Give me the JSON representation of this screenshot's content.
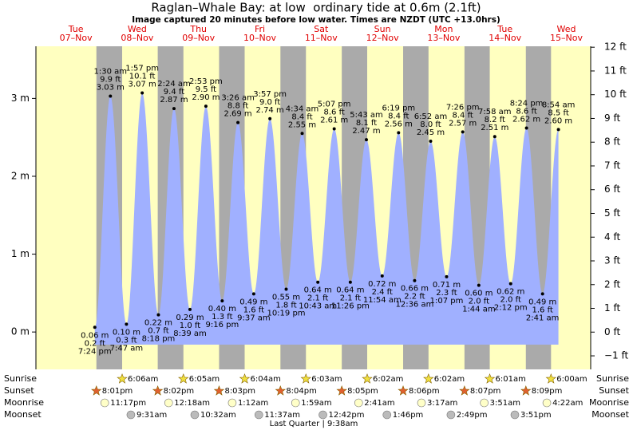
{
  "chart_data": {
    "type": "tide",
    "title": "Raglan–Whale Bay: at low  ordinary tide at 0.6m (2.1ft)",
    "subtitle": "Image captured 20 minutes before low water. Times are NZDT (UTC +13.0hrs)",
    "ylim": [
      -0.48,
      3.67
    ],
    "yticks": [
      {
        "value": 0,
        "label": "0 m"
      },
      {
        "value": 1,
        "label": "1 m"
      },
      {
        "value": 2,
        "label": "2 m"
      },
      {
        "value": 3,
        "label": "3 m"
      }
    ],
    "y2lim": [
      -1.57,
      12.04
    ],
    "y2ticks": [
      {
        "value": -1,
        "label": "−1 ft"
      },
      {
        "value": 0,
        "label": "0 ft"
      },
      {
        "value": 1,
        "label": "1 ft"
      },
      {
        "value": 2,
        "label": "2 ft"
      },
      {
        "value": 3,
        "label": "3 ft"
      },
      {
        "value": 4,
        "label": "4 ft"
      },
      {
        "value": 5,
        "label": "5 ft"
      },
      {
        "value": 6,
        "label": "6 ft"
      },
      {
        "value": 7,
        "label": "7 ft"
      },
      {
        "value": 8,
        "label": "8 ft"
      },
      {
        "value": 9,
        "label": "9 ft"
      },
      {
        "value": 10,
        "label": "10 ft"
      },
      {
        "value": 11,
        "label": "11 ft"
      },
      {
        "value": 12,
        "label": "12 ft"
      }
    ],
    "row_labels": [
      "Sunrise",
      "Sunset",
      "Moonrise",
      "Moonset"
    ],
    "moon_phase": "Last Quarter | 9:38am",
    "days": [
      {
        "name": "Tue",
        "date": "07–Nov",
        "sunrise": null,
        "sunset": "8:01pm",
        "moonrise": "11:17pm",
        "moonset": null,
        "tides": [
          {
            "time": "7:24 pm",
            "value": 0.06,
            "value_label": "0.06 m",
            "feet_label": "0.2 ft"
          }
        ]
      },
      {
        "name": "Wed",
        "date": "08–Nov",
        "sunrise": "6:06am",
        "sunset": "8:02pm",
        "moonrise": null,
        "moonset": "9:31am",
        "tides": [
          {
            "time": "1:30 am",
            "value": 3.03,
            "value_label": "3.03 m",
            "feet_label": "9.9 ft"
          },
          {
            "time": "7:47 am",
            "value": 0.1,
            "value_label": "0.10 m",
            "feet_label": "0.3 ft"
          },
          {
            "time": "1:57 pm",
            "value": 3.07,
            "value_label": "3.07 m",
            "feet_label": "10.1 ft"
          },
          {
            "time": "8:18 pm",
            "value": 0.22,
            "value_label": "0.22 m",
            "feet_label": "0.7 ft"
          }
        ]
      },
      {
        "name": "Thu",
        "date": "09–Nov",
        "sunrise": "6:05am",
        "sunset": "8:03pm",
        "moonrise": "12:18am",
        "moonset": "10:32am",
        "tides": [
          {
            "time": "2:24 am",
            "value": 2.87,
            "value_label": "2.87 m",
            "feet_label": "9.4 ft"
          },
          {
            "time": "8:39 am",
            "value": 0.29,
            "value_label": "0.29 m",
            "feet_label": "1.0 ft"
          },
          {
            "time": "2:53 pm",
            "value": 2.9,
            "value_label": "2.90 m",
            "feet_label": "9.5 ft"
          },
          {
            "time": "9:16 pm",
            "value": 0.4,
            "value_label": "0.40 m",
            "feet_label": "1.3 ft"
          }
        ]
      },
      {
        "name": "Fri",
        "date": "10–Nov",
        "sunrise": "6:04am",
        "sunset": "8:04pm",
        "moonrise": "1:12am",
        "moonset": "11:37am",
        "tides": [
          {
            "time": "3:26 am",
            "value": 2.69,
            "value_label": "2.69 m",
            "feet_label": "8.8 ft"
          },
          {
            "time": "9:37 am",
            "value": 0.49,
            "value_label": "0.49 m",
            "feet_label": "1.6 ft"
          },
          {
            "time": "3:57 pm",
            "value": 2.74,
            "value_label": "2.74 m",
            "feet_label": "9.0 ft"
          },
          {
            "time": "10:19 pm",
            "value": 0.55,
            "value_label": "0.55 m",
            "feet_label": "1.8 ft"
          }
        ]
      },
      {
        "name": "Sat",
        "date": "11–Nov",
        "sunrise": "6:03am",
        "sunset": "8:05pm",
        "moonrise": "1:59am",
        "moonset": "12:42pm",
        "tides": [
          {
            "time": "4:34 am",
            "value": 2.55,
            "value_label": "2.55 m",
            "feet_label": "8.4 ft"
          },
          {
            "time": "10:43 am",
            "value": 0.64,
            "value_label": "0.64 m",
            "feet_label": "2.1 ft"
          },
          {
            "time": "5:07 pm",
            "value": 2.61,
            "value_label": "2.61 m",
            "feet_label": "8.6 ft"
          },
          {
            "time": "11:26 pm",
            "value": 0.64,
            "value_label": "0.64 m",
            "feet_label": "2.1 ft"
          }
        ]
      },
      {
        "name": "Sun",
        "date": "12–Nov",
        "sunrise": "6:02am",
        "sunset": "8:06pm",
        "moonrise": "2:41am",
        "moonset": "1:46pm",
        "tides": [
          {
            "time": "5:43 am",
            "value": 2.47,
            "value_label": "2.47 m",
            "feet_label": "8.1 ft"
          },
          {
            "time": "11:54 am",
            "value": 0.72,
            "value_label": "0.72 m",
            "feet_label": "2.4 ft"
          },
          {
            "time": "6:19 pm",
            "value": 2.56,
            "value_label": "2.56 m",
            "feet_label": "8.4 ft"
          }
        ]
      },
      {
        "name": "Mon",
        "date": "13–Nov",
        "sunrise": "6:02am",
        "sunset": "8:07pm",
        "moonrise": "3:17am",
        "moonset": "2:49pm",
        "tides": [
          {
            "time": "12:36 am",
            "value": 0.66,
            "value_label": "0.66 m",
            "feet_label": "2.2 ft"
          },
          {
            "time": "6:52 am",
            "value": 2.45,
            "value_label": "2.45 m",
            "feet_label": "8.0 ft"
          },
          {
            "time": "1:07 pm",
            "value": 0.71,
            "value_label": "0.71 m",
            "feet_label": "2.3 ft"
          },
          {
            "time": "7:26 pm",
            "value": 2.57,
            "value_label": "2.57 m",
            "feet_label": "8.4 ft"
          }
        ]
      },
      {
        "name": "Tue",
        "date": "14–Nov",
        "sunrise": "6:01am",
        "sunset": "8:09pm",
        "moonrise": "3:51am",
        "moonset": "3:51pm",
        "tides": [
          {
            "time": "1:44 am",
            "value": 0.6,
            "value_label": "0.60 m",
            "feet_label": "2.0 ft"
          },
          {
            "time": "7:58 am",
            "value": 2.51,
            "value_label": "2.51 m",
            "feet_label": "8.2 ft"
          },
          {
            "time": "2:12 pm",
            "value": 0.62,
            "value_label": "0.62 m",
            "feet_label": "2.0 ft"
          },
          {
            "time": "8:24 pm",
            "value": 2.62,
            "value_label": "2.62 m",
            "feet_label": "8.6 ft"
          }
        ]
      },
      {
        "name": "Wed",
        "date": "15–Nov",
        "sunrise": "6:00am",
        "sunset": null,
        "moonrise": "4:22am",
        "moonset": null,
        "tides": [
          {
            "time": "2:41 am",
            "value": 0.49,
            "value_label": "0.49 m",
            "feet_label": "1.6 ft"
          },
          {
            "time": "8:54 am",
            "value": 2.6,
            "value_label": "2.60 m",
            "feet_label": "8.5 ft"
          }
        ]
      }
    ]
  }
}
